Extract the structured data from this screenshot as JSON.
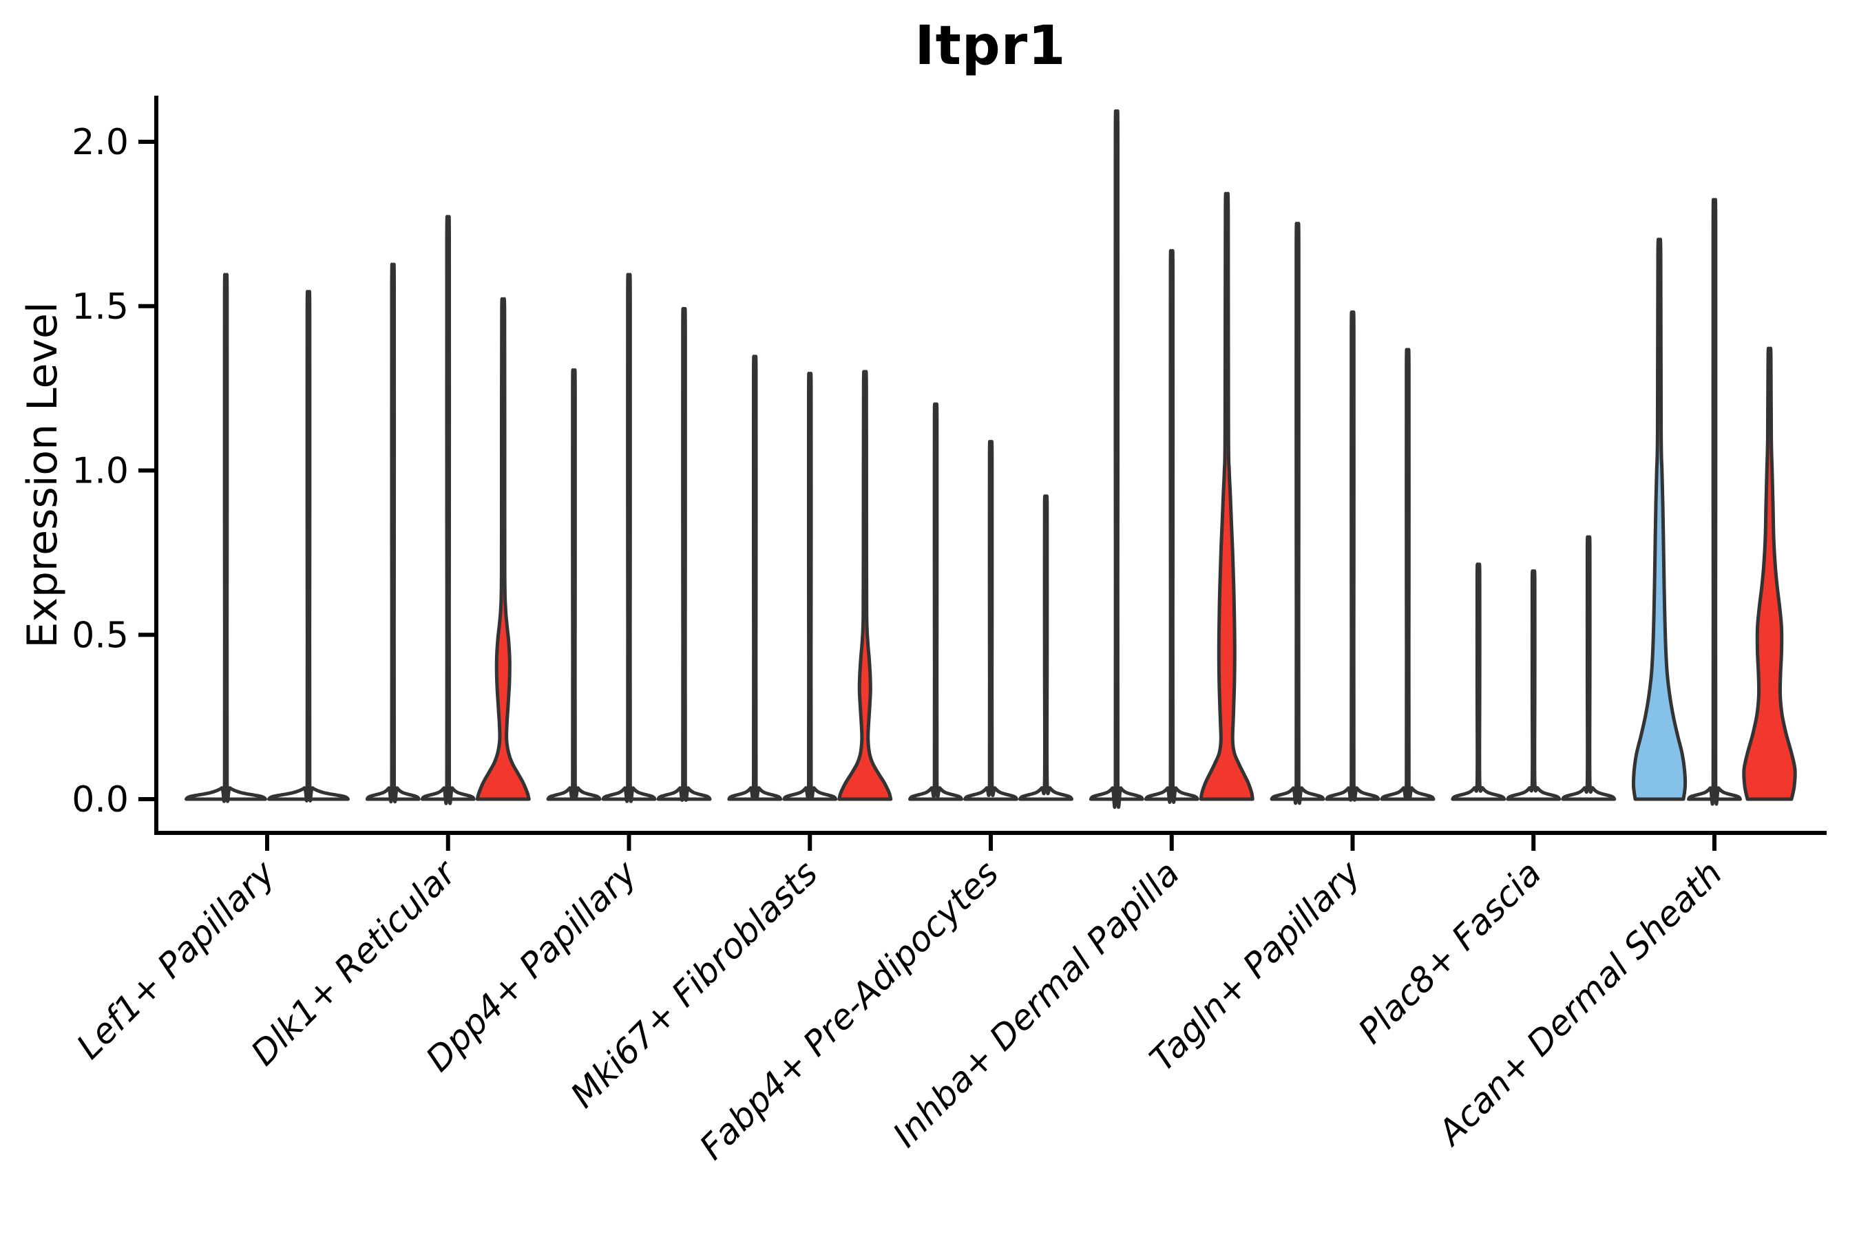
{
  "colors": {
    "red": "#F2382D",
    "blue": "#85C1E8",
    "white": "#FFFFFF",
    "outline": "#333333",
    "axis": "#000000",
    "text": "#000000",
    "background": "#FFFFFF"
  },
  "chart_data": {
    "type": "violin",
    "title": "Itpr1",
    "ylabel": "Expression Level",
    "yticks": [
      0.0,
      0.5,
      1.0,
      1.5,
      2.0
    ],
    "ytick_labels": [
      "0.0",
      "0.5",
      "1.0",
      "1.5",
      "2.0"
    ],
    "ylim": [
      -0.1,
      2.13
    ],
    "grid": "off",
    "legend": "none",
    "categories": [
      "Lef1+ Papillary",
      "Dlk1+ Reticular",
      "Dpp4+ Papillary",
      "Mki67+ Fibroblasts",
      "Fabp4+ Pre-Adipocytes",
      "Inhba+ Dermal Papilla",
      "Tagln+ Papillary",
      "Plac8+ Fascia",
      "Acan+ Dermal Sheath"
    ],
    "groups": [
      {
        "category": "Lef1+ Papillary",
        "violins": [
          {
            "max": 1.55,
            "fill": "white",
            "shape": "spike"
          },
          {
            "max": 1.5,
            "fill": "white",
            "shape": "spike"
          }
        ]
      },
      {
        "category": "Dlk1+ Reticular",
        "violins": [
          {
            "max": 1.58,
            "fill": "white",
            "shape": "spike"
          },
          {
            "max": 1.72,
            "fill": "white",
            "shape": "spike"
          },
          {
            "max": 1.5,
            "fill": "red",
            "shape": "custom",
            "profile": [
              [
                0,
                37.5
              ],
              [
                0.02,
                35
              ],
              [
                0.05,
                29
              ],
              [
                0.08,
                21
              ],
              [
                0.11,
                13
              ],
              [
                0.14,
                8
              ],
              [
                0.18,
                5
              ],
              [
                0.23,
                5.5
              ],
              [
                0.28,
                7
              ],
              [
                0.35,
                9
              ],
              [
                0.42,
                9.5
              ],
              [
                0.48,
                8
              ],
              [
                0.53,
                5.5
              ],
              [
                0.58,
                3.5
              ],
              [
                0.68,
                2.4
              ],
              [
                1.1,
                2.2
              ],
              [
                1.49,
                2
              ]
            ]
          }
        ]
      },
      {
        "category": "Dpp4+ Papillary",
        "violins": [
          {
            "max": 1.27,
            "fill": "white",
            "shape": "spike"
          },
          {
            "max": 1.55,
            "fill": "white",
            "shape": "spike"
          },
          {
            "max": 1.45,
            "fill": "white",
            "shape": "spike"
          }
        ]
      },
      {
        "category": "Mki67+ Fibroblasts",
        "violins": [
          {
            "max": 1.31,
            "fill": "white",
            "shape": "spike"
          },
          {
            "max": 1.26,
            "fill": "white",
            "shape": "spike"
          },
          {
            "max": 1.27,
            "fill": "red",
            "shape": "custom",
            "profile": [
              [
                0,
                37.5
              ],
              [
                0.02,
                35
              ],
              [
                0.05,
                28
              ],
              [
                0.08,
                19
              ],
              [
                0.11,
                11
              ],
              [
                0.14,
                6.5
              ],
              [
                0.18,
                4.5
              ],
              [
                0.22,
                5
              ],
              [
                0.27,
                6.5
              ],
              [
                0.33,
                8
              ],
              [
                0.38,
                7.5
              ],
              [
                0.43,
                6
              ],
              [
                0.48,
                4
              ],
              [
                0.55,
                2.6
              ],
              [
                0.75,
                2.2
              ],
              [
                1.26,
                2
              ]
            ]
          }
        ]
      },
      {
        "category": "Fabp4+ Pre-Adipocytes",
        "violins": [
          {
            "max": 1.17,
            "fill": "white",
            "shape": "spike"
          },
          {
            "max": 1.06,
            "fill": "white",
            "shape": "spike"
          },
          {
            "max": 0.9,
            "fill": "white",
            "shape": "spike"
          }
        ]
      },
      {
        "category": "Inhba+ Dermal Papilla",
        "violins": [
          {
            "max": 2.03,
            "fill": "white",
            "shape": "spike"
          },
          {
            "max": 1.62,
            "fill": "white",
            "shape": "spike"
          },
          {
            "max": 1.8,
            "fill": "red",
            "shape": "custom",
            "profile": [
              [
                0,
                37.5
              ],
              [
                0.02,
                36
              ],
              [
                0.05,
                31
              ],
              [
                0.08,
                24
              ],
              [
                0.11,
                17
              ],
              [
                0.14,
                11
              ],
              [
                0.18,
                8.5
              ],
              [
                0.25,
                9.5
              ],
              [
                0.35,
                11
              ],
              [
                0.45,
                11.5
              ],
              [
                0.55,
                11
              ],
              [
                0.65,
                10
              ],
              [
                0.75,
                8.5
              ],
              [
                0.85,
                6.5
              ],
              [
                0.93,
                5
              ],
              [
                1.0,
                3.5
              ],
              [
                1.12,
                2.4
              ],
              [
                1.79,
                2
              ]
            ]
          }
        ]
      },
      {
        "category": "Tagln+ Papillary",
        "violins": [
          {
            "max": 1.7,
            "fill": "white",
            "shape": "spike"
          },
          {
            "max": 1.44,
            "fill": "white",
            "shape": "spike"
          },
          {
            "max": 1.33,
            "fill": "white",
            "shape": "spike"
          }
        ]
      },
      {
        "category": "Plac8+ Fascia",
        "violins": [
          {
            "max": 0.7,
            "fill": "white",
            "shape": "spike"
          },
          {
            "max": 0.68,
            "fill": "white",
            "shape": "spike"
          },
          {
            "max": 0.78,
            "fill": "white",
            "shape": "spike"
          }
        ]
      },
      {
        "category": "Acan+ Dermal Sheath",
        "violins": [
          {
            "max": 1.67,
            "fill": "blue",
            "shape": "custom",
            "profile": [
              [
                0,
                35
              ],
              [
                0.04,
                37.5
              ],
              [
                0.09,
                36.5
              ],
              [
                0.14,
                33
              ],
              [
                0.19,
                27
              ],
              [
                0.25,
                20.5
              ],
              [
                0.31,
                15.5
              ],
              [
                0.38,
                11.5
              ],
              [
                0.45,
                9.5
              ],
              [
                0.55,
                8
              ],
              [
                0.65,
                7
              ],
              [
                0.78,
                6
              ],
              [
                0.9,
                5
              ],
              [
                1.0,
                3.8
              ],
              [
                1.12,
                2.6
              ],
              [
                1.66,
                2
              ]
            ]
          },
          {
            "max": 1.77,
            "fill": "white",
            "shape": "spike"
          },
          {
            "max": 1.36,
            "fill": "red",
            "shape": "custom",
            "profile": [
              [
                0,
                32
              ],
              [
                0.04,
                36
              ],
              [
                0.09,
                37
              ],
              [
                0.14,
                32
              ],
              [
                0.2,
                24
              ],
              [
                0.26,
                18
              ],
              [
                0.32,
                15.5
              ],
              [
                0.38,
                16
              ],
              [
                0.45,
                17.5
              ],
              [
                0.52,
                17.5
              ],
              [
                0.58,
                15
              ],
              [
                0.65,
                11
              ],
              [
                0.72,
                8
              ],
              [
                0.8,
                6
              ],
              [
                0.9,
                5
              ],
              [
                1.0,
                3.8
              ],
              [
                1.1,
                2.6
              ],
              [
                1.35,
                2
              ]
            ]
          }
        ]
      }
    ]
  }
}
